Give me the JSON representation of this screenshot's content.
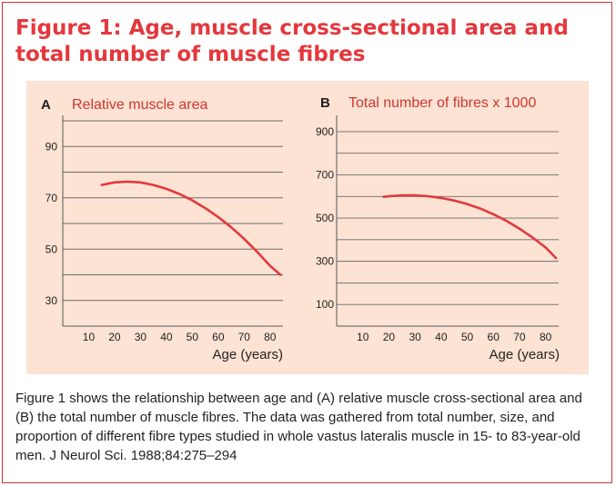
{
  "figure": {
    "title": "Figure 1: Age, muscle cross-sectional area and total number of muscle fibres",
    "caption": "Figure 1 shows the relationship between age and (A) relative muscle cross-sectional area and (B) the total number of muscle fibres. The data was gathered from total number, size, and proportion of different fibre types studied in whole vastus lateralis muscle in 15- to 83-year-old men. J Neurol Sci. 1988;84:275–294"
  },
  "colors": {
    "accent": "#e3383d",
    "curve": "#e3383d",
    "panel_bg": "#fce3d4",
    "grid": "#6b6b6b"
  },
  "chart_data": [
    {
      "type": "line",
      "panel_letter": "A",
      "title": "Relative muscle area",
      "xlabel": "Age (years)",
      "ylabel": "",
      "xlim": [
        0,
        85
      ],
      "ylim": [
        20,
        100
      ],
      "xticks": [
        10,
        20,
        30,
        40,
        50,
        60,
        70,
        80
      ],
      "yticks": [
        30,
        50,
        70,
        90
      ],
      "grid": true,
      "series": [
        {
          "x": [
            15,
            20,
            25,
            30,
            35,
            40,
            45,
            50,
            55,
            60,
            65,
            70,
            75,
            80,
            84
          ],
          "y": [
            75,
            76,
            76.3,
            76,
            75,
            73.5,
            71.5,
            69,
            66,
            62.5,
            58.5,
            54,
            49,
            43.5,
            40
          ]
        }
      ]
    },
    {
      "type": "line",
      "panel_letter": "B",
      "title": "Total number of fibres x 1000",
      "xlabel": "Age (years)",
      "ylabel": "",
      "xlim": [
        0,
        85
      ],
      "ylim": [
        0,
        950
      ],
      "xticks": [
        10,
        20,
        30,
        40,
        50,
        60,
        70,
        80
      ],
      "yticks": [
        100,
        300,
        500,
        700,
        900
      ],
      "grid": true,
      "series": [
        {
          "x": [
            18,
            20,
            25,
            30,
            35,
            40,
            45,
            50,
            55,
            60,
            65,
            70,
            75,
            80,
            84
          ],
          "y": [
            598,
            601,
            605,
            605,
            601,
            593,
            581,
            565,
            544,
            518,
            487,
            451,
            410,
            364,
            315
          ]
        }
      ]
    }
  ]
}
